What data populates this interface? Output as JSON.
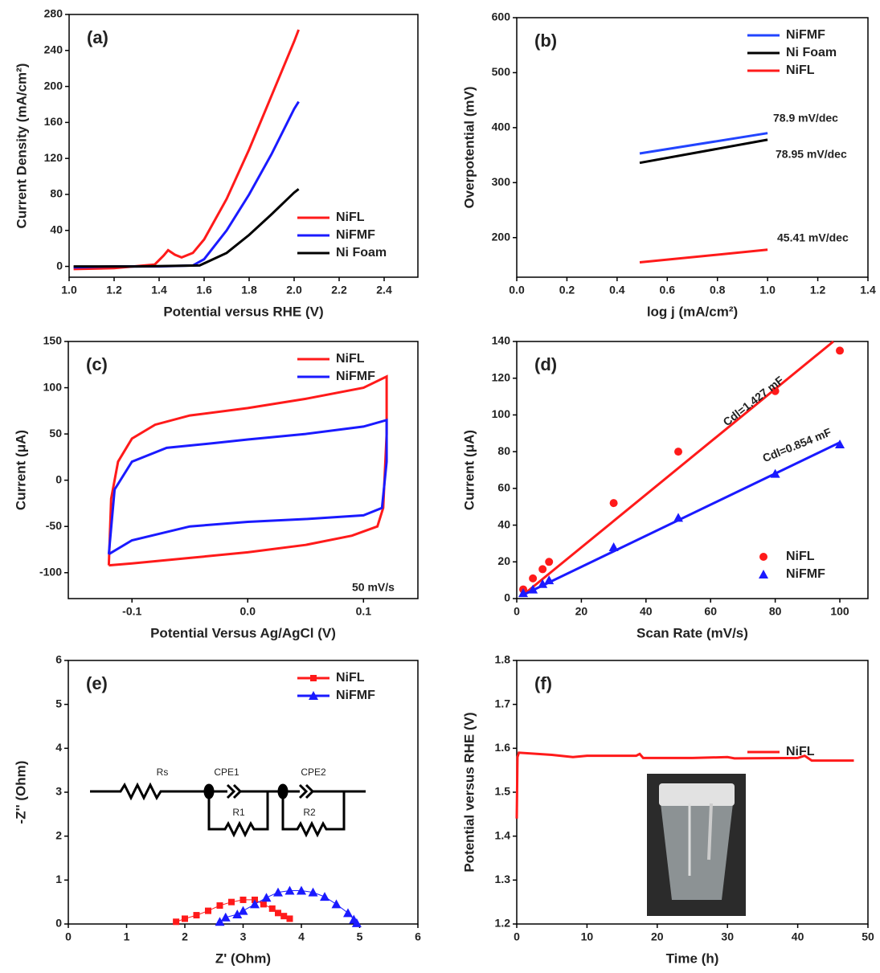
{
  "chart_data": [
    {
      "type": "line",
      "panel_label": "(a)",
      "x_label": "Potential versus RHE (V)",
      "y_label": "Current Density (mA/cm²)",
      "xlim": [
        1.0,
        2.55
      ],
      "ylim": [
        -12,
        280
      ],
      "xticks": [
        {
          "value": 1,
          "label": "1.0"
        },
        1.2,
        1.4,
        1.6,
        1.8,
        {
          "value": 2,
          "label": "2.0"
        },
        2.2,
        2.4
      ],
      "yticks": [
        0,
        40,
        80,
        120,
        160,
        200,
        240,
        280
      ],
      "legend": "lower right",
      "series": [
        {
          "name": "NiFL",
          "color": "#ff1a1a",
          "x": [
            1.02,
            1.2,
            1.38,
            1.42,
            1.44,
            1.47,
            1.5,
            1.55,
            1.6,
            1.7,
            1.8,
            1.9,
            2.0,
            2.02
          ],
          "values": [
            -3,
            -2,
            2,
            12,
            18,
            13,
            10,
            15,
            30,
            75,
            130,
            190,
            250,
            263
          ]
        },
        {
          "name": "NiFMF",
          "color": "#1a1aff",
          "x": [
            1.02,
            1.2,
            1.4,
            1.55,
            1.6,
            1.7,
            1.8,
            1.9,
            2.0,
            2.02
          ],
          "values": [
            -1,
            0,
            0,
            1,
            8,
            40,
            80,
            125,
            175,
            183
          ]
        },
        {
          "name": "Ni Foam",
          "color": "#000000",
          "x": [
            1.02,
            1.3,
            1.58,
            1.7,
            1.8,
            1.9,
            2.0,
            2.02
          ],
          "values": [
            0,
            0,
            1,
            15,
            35,
            58,
            82,
            86
          ]
        }
      ]
    },
    {
      "type": "line",
      "panel_label": "(b)",
      "x_label": "log  j (mA/cm²)",
      "y_label": "Overpotential (mV)",
      "xlim": [
        0,
        1.4
      ],
      "ylim": [
        128,
        600
      ],
      "xticks": [
        {
          "value": 0,
          "label": "0.0"
        },
        0.2,
        0.4,
        0.6,
        0.8,
        {
          "value": 1,
          "label": "1.0"
        },
        1.2,
        1.4
      ],
      "yticks": [
        200,
        300,
        400,
        500,
        600
      ],
      "legend": "upper right",
      "series": [
        {
          "name": "NiFMF",
          "color": "#2244ff",
          "x": [
            0.49,
            1.0
          ],
          "values": [
            353,
            390
          ]
        },
        {
          "name": "Ni Foam",
          "color": "#000000",
          "x": [
            0.49,
            1.0
          ],
          "values": [
            336,
            378
          ]
        },
        {
          "name": "NiFL",
          "color": "#ff1a1a",
          "x": [
            0.49,
            1.0
          ],
          "values": [
            155,
            178
          ]
        }
      ],
      "annotations": [
        {
          "text": "78.9 mV/dec",
          "color": "#2244ff"
        },
        {
          "text": "78.95 mV/dec",
          "color": "#000000"
        },
        {
          "text": "45.41 mV/dec",
          "color": "#ff1a1a"
        }
      ]
    },
    {
      "type": "line",
      "panel_label": "(c)",
      "x_label": "Potential Versus Ag/AgCl (V)",
      "y_label": "Current (μA)",
      "xlim": [
        -0.155,
        0.147
      ],
      "ylim": [
        -128,
        150
      ],
      "xticks": [
        -0.1,
        {
          "value": 0,
          "label": "0.0"
        },
        0.1
      ],
      "yticks": [
        -100,
        -50,
        0,
        50,
        100,
        150
      ],
      "legend": "upper right",
      "series": [
        {
          "name": "NiFL",
          "color": "#ff1a1a",
          "x": [
            -0.12,
            -0.118,
            -0.112,
            -0.1,
            -0.08,
            -0.05,
            0,
            0.05,
            0.1,
            0.12,
            0.12,
            0.117,
            0.112,
            0.09,
            0.05,
            0,
            -0.05,
            -0.1,
            -0.12
          ],
          "values": [
            -92,
            -20,
            20,
            45,
            60,
            70,
            78,
            88,
            100,
            112,
            50,
            -30,
            -50,
            -60,
            -70,
            -78,
            -84,
            -90,
            -92
          ]
        },
        {
          "name": "NiFMF",
          "color": "#1a1aff",
          "x": [
            -0.12,
            -0.115,
            -0.1,
            -0.07,
            -0.03,
            0,
            0.05,
            0.1,
            0.12,
            0.12,
            0.116,
            0.1,
            0.05,
            0,
            -0.05,
            -0.1,
            -0.12
          ],
          "values": [
            -80,
            -10,
            20,
            35,
            40,
            44,
            50,
            58,
            65,
            20,
            -30,
            -38,
            -42,
            -45,
            -50,
            -65,
            -80
          ]
        }
      ],
      "annotations": [
        {
          "text": "50 mV/s",
          "color": "#000000"
        }
      ]
    },
    {
      "type": "scatter",
      "panel_label": "(d)",
      "x_label": "Scan Rate (mV/s)",
      "y_label": "Current (μA)",
      "xlim": [
        0,
        108.7
      ],
      "ylim": [
        0,
        140
      ],
      "xticks": [
        0,
        20,
        40,
        60,
        80,
        100
      ],
      "yticks": [
        0,
        20,
        40,
        60,
        80,
        100,
        120,
        140
      ],
      "legend": "lower right",
      "series": [
        {
          "name": "NiFL",
          "color": "#ff1a1a",
          "marker": "circle",
          "x": [
            2,
            5,
            8,
            10,
            30,
            50,
            80,
            100
          ],
          "values": [
            5,
            11,
            16,
            20,
            52,
            80,
            113,
            135
          ]
        },
        {
          "name": "NiFMF",
          "color": "#1a1aff",
          "marker": "triangle",
          "x": [
            2,
            5,
            8,
            10,
            30,
            50,
            80,
            100
          ],
          "values": [
            3,
            5,
            8,
            10,
            28,
            44,
            68,
            84
          ]
        }
      ],
      "fits": [
        {
          "color": "#ff1a1a",
          "x": [
            2,
            98
          ],
          "values": [
            2,
            140
          ]
        },
        {
          "color": "#1a1aff",
          "x": [
            2,
            100
          ],
          "values": [
            2,
            85
          ]
        }
      ],
      "annotations": [
        {
          "text": "Cdl=1.427 mF",
          "color": "#ff1a1a"
        },
        {
          "text": "Cdl=0.854 mF",
          "color": "#1a1aff"
        }
      ]
    },
    {
      "type": "line",
      "panel_label": "(e)",
      "x_label": "Z' (Ohm)",
      "y_label": "-Z'' (Ohm)",
      "xlim": [
        0,
        6
      ],
      "ylim": [
        0,
        6
      ],
      "xticks": [
        0,
        1,
        2,
        3,
        4,
        5,
        6
      ],
      "yticks": [
        0,
        1,
        2,
        3,
        4,
        5,
        6
      ],
      "legend": "upper right",
      "series": [
        {
          "name": "NiFL",
          "color": "#ff1a1a",
          "marker": "square",
          "x": [
            1.85,
            2.0,
            2.2,
            2.4,
            2.6,
            2.8,
            3.0,
            3.2,
            3.35,
            3.5,
            3.6,
            3.7,
            3.8
          ],
          "values": [
            0.05,
            0.12,
            0.2,
            0.3,
            0.42,
            0.5,
            0.55,
            0.55,
            0.45,
            0.35,
            0.25,
            0.18,
            0.12
          ]
        },
        {
          "name": "NiFMF",
          "color": "#1a1aff",
          "marker": "triangle",
          "x": [
            2.6,
            2.7,
            2.9,
            3.0,
            3.2,
            3.4,
            3.6,
            3.8,
            4.0,
            4.2,
            4.4,
            4.6,
            4.8,
            4.9,
            4.95
          ],
          "values": [
            0.05,
            0.15,
            0.22,
            0.3,
            0.45,
            0.6,
            0.72,
            0.76,
            0.76,
            0.72,
            0.62,
            0.45,
            0.25,
            0.1,
            0.02
          ]
        }
      ],
      "annotations": [
        {
          "text": "Rs",
          "color": "#000000"
        },
        {
          "text": "CPE1",
          "color": "#000000"
        },
        {
          "text": "R1",
          "color": "#000000"
        },
        {
          "text": "CPE2",
          "color": "#000000"
        },
        {
          "text": "R2",
          "color": "#000000"
        }
      ]
    },
    {
      "type": "line",
      "panel_label": "(f)",
      "x_label": "Time (h)",
      "y_label": "Potential versus RHE (V)",
      "xlim": [
        0,
        50
      ],
      "ylim": [
        1.2,
        1.8
      ],
      "xticks": [
        0,
        10,
        20,
        30,
        40,
        50
      ],
      "yticks": [
        1.2,
        1.3,
        1.4,
        1.5,
        1.6,
        1.7,
        1.8
      ],
      "legend": "center right",
      "series": [
        {
          "name": "NiFL",
          "color": "#ff1a1a",
          "x": [
            0,
            0.1,
            0.3,
            5,
            8,
            10,
            17,
            17.5,
            18,
            25,
            30,
            31,
            40,
            41,
            42,
            48
          ],
          "values": [
            1.44,
            1.58,
            1.59,
            1.585,
            1.58,
            1.583,
            1.583,
            1.587,
            1.578,
            1.578,
            1.58,
            1.577,
            1.578,
            1.583,
            1.572,
            1.572
          ]
        }
      ]
    }
  ]
}
